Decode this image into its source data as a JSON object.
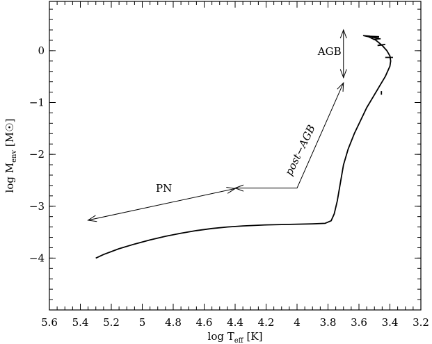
{
  "chart_data": {
    "type": "line",
    "xlabel": {
      "main": "log T",
      "sub": "eff",
      "unit": " [K]"
    },
    "ylabel": {
      "main": "log M",
      "sub": "env",
      "unit": " [M",
      "sym": "☉",
      "close": "]"
    },
    "xlim": [
      5.6,
      3.2
    ],
    "ylim": [
      -5.0,
      0.95
    ],
    "x_reversed": true,
    "x_ticks": [
      "5.6",
      "5.4",
      "5.2",
      "5",
      "4.8",
      "4.6",
      "4.4",
      "4.2",
      "4",
      "3.8",
      "3.6",
      "3.4",
      "3.2"
    ],
    "y_ticks": [
      "0",
      "−1",
      "−2",
      "−3",
      "−4"
    ],
    "grid": false,
    "series": [
      {
        "points": [
          [
            5.3,
            -4.0
          ],
          [
            5.25,
            -3.93
          ],
          [
            5.15,
            -3.82
          ],
          [
            5.05,
            -3.73
          ],
          [
            4.95,
            -3.65
          ],
          [
            4.85,
            -3.58
          ],
          [
            4.75,
            -3.52
          ],
          [
            4.65,
            -3.47
          ],
          [
            4.55,
            -3.43
          ],
          [
            4.45,
            -3.4
          ],
          [
            4.35,
            -3.38
          ],
          [
            4.2,
            -3.36
          ],
          [
            4.05,
            -3.35
          ],
          [
            3.9,
            -3.34
          ],
          [
            3.82,
            -3.33
          ],
          [
            3.78,
            -3.28
          ],
          [
            3.76,
            -3.15
          ],
          [
            3.74,
            -2.9
          ],
          [
            3.72,
            -2.55
          ],
          [
            3.7,
            -2.2
          ],
          [
            3.67,
            -1.9
          ],
          [
            3.63,
            -1.6
          ],
          [
            3.59,
            -1.35
          ],
          [
            3.55,
            -1.1
          ],
          [
            3.51,
            -0.9
          ],
          [
            3.47,
            -0.7
          ],
          [
            3.43,
            -0.5
          ],
          [
            3.4,
            -0.3
          ],
          [
            3.395,
            -0.2
          ],
          [
            3.4,
            -0.1
          ],
          [
            3.42,
            0.0
          ],
          [
            3.45,
            0.1
          ],
          [
            3.49,
            0.2
          ],
          [
            3.54,
            0.27
          ],
          [
            3.57,
            0.29
          ],
          [
            3.53,
            0.28
          ]
        ],
        "wiggles": [
          [
            3.43,
            -0.13,
            3.38,
            -0.13
          ],
          [
            3.48,
            0.1,
            3.43,
            0.12
          ],
          [
            3.51,
            0.22,
            3.46,
            0.23
          ],
          [
            3.55,
            0.28,
            3.47,
            0.27
          ],
          [
            3.52,
            0.26,
            3.47,
            0.24
          ],
          [
            3.455,
            -0.85,
            3.455,
            -0.78
          ]
        ]
      }
    ],
    "annotations": [
      {
        "text": "AGB",
        "arrow": "double",
        "from": [
          3.7,
          0.4
        ],
        "to": [
          3.7,
          -0.52
        ],
        "label_at": [
          3.79,
          -0.08
        ]
      },
      {
        "text": "post−AGB",
        "arrow": "polyline",
        "points": [
          [
            4.4,
            -2.65
          ],
          [
            4.0,
            -2.65
          ],
          [
            3.7,
            -0.62
          ]
        ],
        "label_at": [
          3.96,
          -1.95
        ],
        "rotate": -64
      },
      {
        "text": "PN",
        "arrow": "double",
        "from": [
          5.35,
          -3.27
        ],
        "to": [
          4.4,
          -2.66
        ],
        "label_at": [
          4.86,
          -2.72
        ]
      }
    ]
  }
}
